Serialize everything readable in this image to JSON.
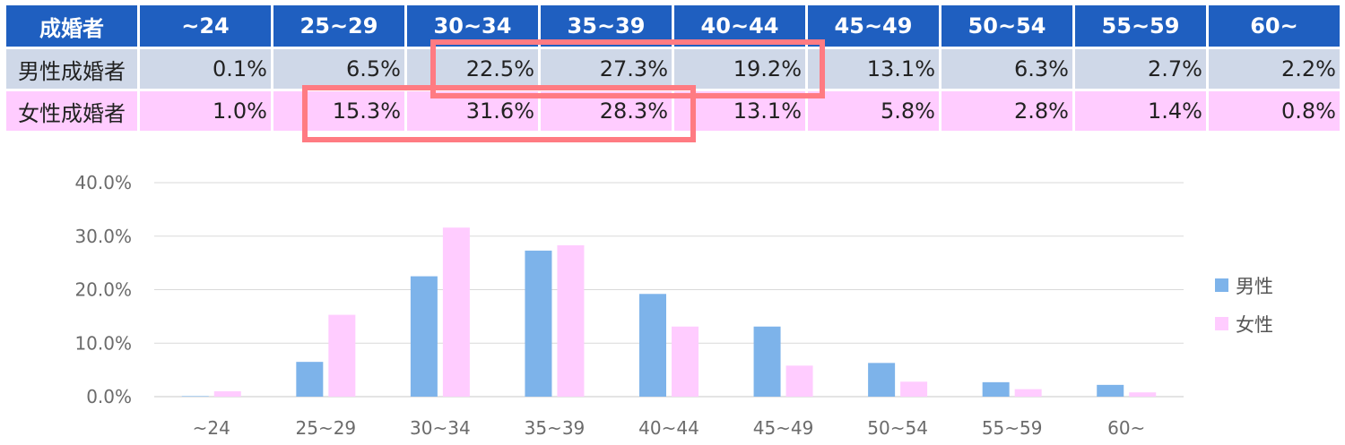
{
  "table": {
    "corner_label": "成婚者",
    "headers": [
      "~24",
      "25~29",
      "30~34",
      "35~39",
      "40~44",
      "45~49",
      "50~54",
      "55~59",
      "60~"
    ],
    "male": {
      "label": "男性成婚者",
      "values": [
        "0.1%",
        "6.5%",
        "22.5%",
        "27.3%",
        "19.2%",
        "13.1%",
        "6.3%",
        "2.7%",
        "2.2%"
      ]
    },
    "female": {
      "label": "女性成婚者",
      "values": [
        "1.0%",
        "15.3%",
        "31.6%",
        "28.3%",
        "13.1%",
        "5.8%",
        "2.8%",
        "1.4%",
        "0.8%"
      ]
    },
    "highlight_color": "#ff7b82",
    "header_color": "#1f5fc0",
    "male_row_color": "#cfd8e8",
    "female_row_color": "#ffccff"
  },
  "chart_data": {
    "type": "bar",
    "categories": [
      "~24",
      "25~29",
      "30~34",
      "35~39",
      "40~44",
      "45~49",
      "50~54",
      "55~59",
      "60~"
    ],
    "series": [
      {
        "name": "男性",
        "color": "#7db3ea",
        "values": [
          0.1,
          6.5,
          22.5,
          27.3,
          19.2,
          13.1,
          6.3,
          2.7,
          2.2
        ]
      },
      {
        "name": "女性",
        "color": "#ffccff",
        "values": [
          1.0,
          15.3,
          31.6,
          28.3,
          13.1,
          5.8,
          2.8,
          1.4,
          0.8
        ]
      }
    ],
    "yticks": [
      "0.0%",
      "10.0%",
      "20.0%",
      "30.0%",
      "40.0%"
    ],
    "ylim": [
      0,
      40
    ],
    "grid": true,
    "legend_position": "right",
    "title": "",
    "xlabel": "",
    "ylabel": ""
  }
}
